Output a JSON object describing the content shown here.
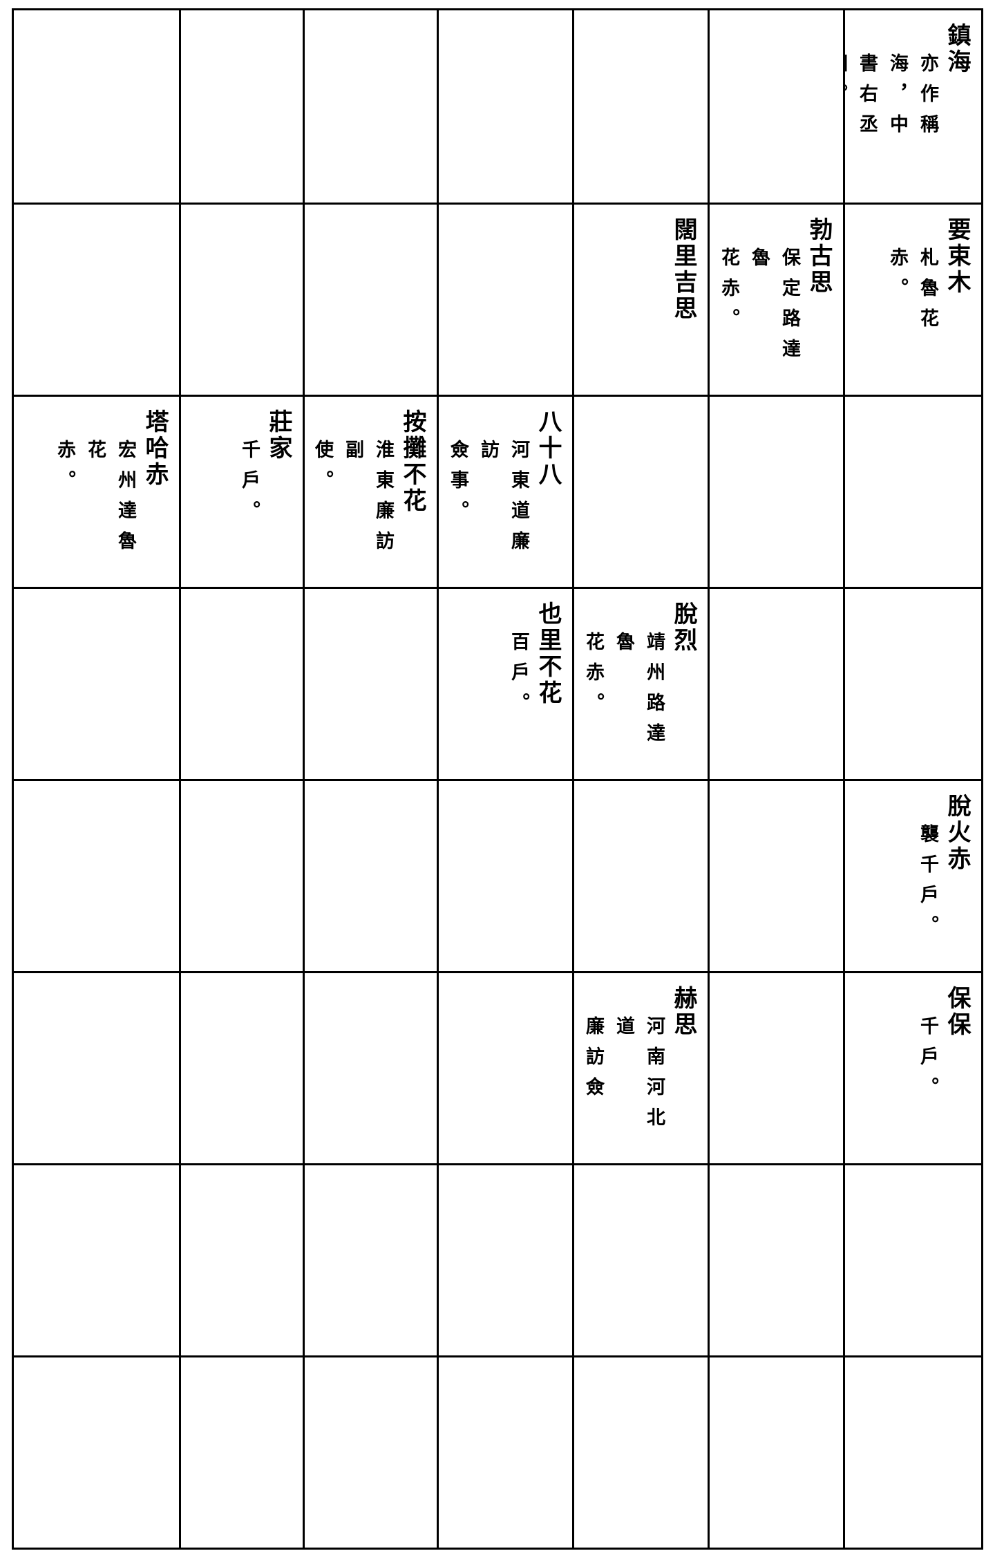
{
  "table": {
    "rows": [
      [
        {
          "name": "鎮海",
          "note": [
            "亦作稱海，中",
            "書右丞相。"
          ]
        },
        {
          "name": "",
          "note": []
        },
        {
          "name": "",
          "note": []
        },
        {
          "name": "",
          "note": []
        },
        {
          "name": "",
          "note": []
        },
        {
          "name": "",
          "note": []
        },
        {
          "name": "",
          "note": []
        }
      ],
      [
        {
          "name": "要束木",
          "note": [
            "札魯花赤。"
          ]
        },
        {
          "name": "勃古思",
          "note": [
            "保定路達魯",
            "花赤。"
          ]
        },
        {
          "name": "闊里吉思",
          "note": []
        },
        {
          "name": "",
          "note": []
        },
        {
          "name": "",
          "note": []
        },
        {
          "name": "",
          "note": []
        },
        {
          "name": "",
          "note": []
        }
      ],
      [
        {
          "name": "",
          "note": []
        },
        {
          "name": "",
          "note": []
        },
        {
          "name": "",
          "note": []
        },
        {
          "name": "八十八",
          "note": [
            "河東道廉訪",
            "僉事。"
          ]
        },
        {
          "name": "按攤不花",
          "note": [
            "淮東廉訪副",
            "使。"
          ]
        },
        {
          "name": "莊家",
          "note": [
            "千戶。"
          ]
        },
        {
          "name": "塔哈赤",
          "note": [
            "宏州達魯花",
            "赤。"
          ]
        }
      ],
      [
        {
          "name": "",
          "note": []
        },
        {
          "name": "",
          "note": []
        },
        {
          "name": "脫烈",
          "note": [
            "靖州路達魯",
            "花赤。"
          ]
        },
        {
          "name": "也里不花",
          "note": [
            "百戶。"
          ]
        },
        {
          "name": "",
          "note": []
        },
        {
          "name": "",
          "note": []
        },
        {
          "name": "",
          "note": []
        }
      ],
      [
        {
          "name": "脫火赤",
          "note": [
            "襲千戶。"
          ]
        },
        {
          "name": "",
          "note": []
        },
        {
          "name": "",
          "note": []
        },
        {
          "name": "",
          "note": []
        },
        {
          "name": "",
          "note": []
        },
        {
          "name": "",
          "note": []
        },
        {
          "name": "",
          "note": []
        }
      ],
      [
        {
          "name": "保保",
          "note": [
            "千戶。"
          ]
        },
        {
          "name": "",
          "note": []
        },
        {
          "name": "赫思",
          "note": [
            "河南河北道",
            "廉訪僉事。"
          ]
        },
        {
          "name": "",
          "note": []
        },
        {
          "name": "",
          "note": []
        },
        {
          "name": "",
          "note": []
        },
        {
          "name": "",
          "note": []
        }
      ],
      [
        {
          "name": "",
          "note": []
        },
        {
          "name": "",
          "note": []
        },
        {
          "name": "",
          "note": []
        },
        {
          "name": "",
          "note": []
        },
        {
          "name": "",
          "note": []
        },
        {
          "name": "",
          "note": []
        },
        {
          "name": "",
          "note": []
        }
      ],
      [
        {
          "name": "",
          "note": []
        },
        {
          "name": "",
          "note": []
        },
        {
          "name": "",
          "note": []
        },
        {
          "name": "",
          "note": []
        },
        {
          "name": "",
          "note": []
        },
        {
          "name": "",
          "note": []
        },
        {
          "name": "",
          "note": []
        }
      ]
    ]
  }
}
